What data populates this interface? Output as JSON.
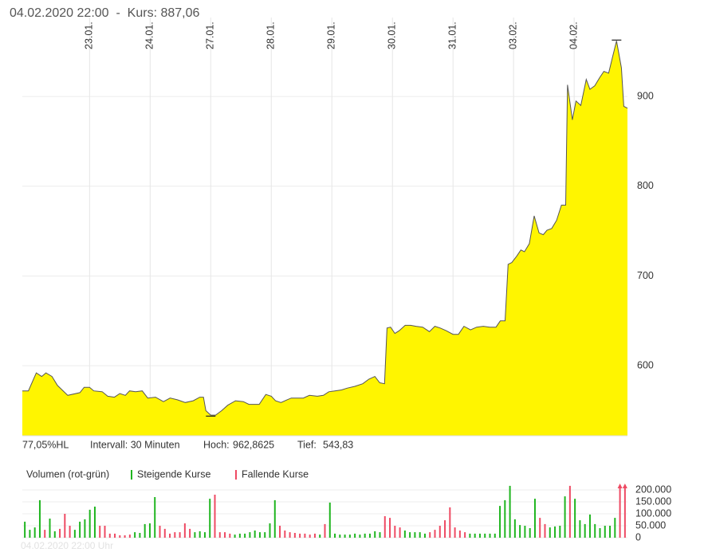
{
  "header": "04.02.2020 22:00  -  Kurs: 887,06",
  "info": {
    "hl": "77,05%HL",
    "interval": "Intervall: 30 Minuten",
    "high_label": "Hoch:",
    "high": {
      "value": 962.8625,
      "label": "962,8625"
    },
    "low_label": "Tief:",
    "low": {
      "value": 543.83,
      "label": "543,83"
    }
  },
  "footer": "04.02.2020 22:00 Uhr",
  "chart_data": [
    {
      "type": "area",
      "xlim": [
        -1.11,
        8.88
      ],
      "xticks": [
        {
          "value": 0,
          "label": "23.01."
        },
        {
          "value": 1,
          "label": "24.01."
        },
        {
          "value": 2,
          "label": "27.01."
        },
        {
          "value": 3,
          "label": "28.01."
        },
        {
          "value": 4,
          "label": "29.01."
        },
        {
          "value": 5,
          "label": "30.01."
        },
        {
          "value": 6,
          "label": "31.01."
        },
        {
          "value": 7,
          "label": "03.02."
        },
        {
          "value": 8,
          "label": "04.02."
        }
      ],
      "ylim": [
        522,
        988
      ],
      "yticks": [
        600,
        700,
        800,
        900
      ],
      "grid": true,
      "x": [
        -1.11,
        -1.01,
        -0.88,
        -0.79,
        -0.72,
        -0.62,
        -0.53,
        -0.36,
        -0.16,
        -0.09,
        0,
        0.07,
        0.21,
        0.3,
        0.41,
        0.5,
        0.59,
        0.66,
        0.76,
        0.87,
        0.96,
        1.09,
        1.22,
        1.33,
        1.45,
        1.58,
        1.71,
        1.82,
        1.88,
        1.92,
        2.0,
        2.08,
        2.18,
        2.28,
        2.41,
        2.54,
        2.63,
        2.8,
        2.91,
        3.0,
        3.07,
        3.16,
        3.26,
        3.33,
        3.42,
        3.53,
        3.63,
        3.76,
        3.86,
        3.95,
        4.05,
        4.16,
        4.25,
        4.38,
        4.51,
        4.61,
        4.71,
        4.79,
        4.87,
        4.91,
        4.97,
        5.04,
        5.11,
        5.21,
        5.3,
        5.39,
        5.5,
        5.61,
        5.7,
        5.79,
        5.89,
        6.0,
        6.09,
        6.18,
        6.29,
        6.39,
        6.5,
        6.61,
        6.71,
        6.78,
        6.86,
        6.91,
        6.97,
        7.05,
        7.12,
        7.18,
        7.26,
        7.34,
        7.42,
        7.49,
        7.55,
        7.63,
        7.71,
        7.79,
        7.86,
        7.89,
        7.97,
        8.03,
        8.11,
        8.2,
        8.26,
        8.34,
        8.42,
        8.49,
        8.57,
        8.63,
        8.7,
        8.78,
        8.82,
        8.88
      ],
      "series": [
        {
          "color": "#fff500",
          "line_color": "#555555",
          "values": [
            572,
            572,
            592,
            588,
            592,
            588,
            578,
            567,
            570,
            576,
            576,
            572,
            571,
            566,
            565,
            569,
            567,
            572,
            571,
            572,
            564,
            565,
            560,
            564,
            562,
            559,
            561,
            565,
            565,
            550,
            545,
            545,
            550,
            556,
            561,
            560,
            557,
            557,
            568,
            566,
            561,
            559,
            562,
            564,
            564,
            564,
            567,
            566,
            567,
            571,
            572,
            573,
            575,
            577,
            580,
            585,
            588,
            581,
            580,
            642,
            643,
            636,
            639,
            645,
            645,
            644,
            643,
            638,
            644,
            642,
            639,
            635,
            635,
            644,
            640,
            643,
            644,
            643,
            643,
            650,
            650,
            713,
            715,
            722,
            729,
            727,
            736,
            767,
            748,
            746,
            751,
            753,
            762,
            779,
            779,
            913,
            874,
            895,
            890,
            919,
            908,
            912,
            921,
            928,
            926,
            943,
            962,
            932,
            889,
            887
          ]
        }
      ]
    },
    {
      "type": "bar",
      "title": "Volumen (rot-grün)",
      "ylim": [
        0,
        220000
      ],
      "yticks": [
        0,
        {
          "value": 50000,
          "label": "50.000"
        },
        {
          "value": 100000,
          "label": "100.000"
        },
        {
          "value": 150000,
          "label": "150.000"
        },
        {
          "value": 200000,
          "label": "200.000"
        }
      ],
      "grid": true,
      "series": [
        {
          "name": "Steigende Kurse",
          "color": "#1fb51f",
          "values": [
            67000,
            33000,
            43000,
            157000,
            null,
            80000,
            27000,
            null,
            null,
            null,
            33000,
            67000,
            77000,
            117000,
            130000,
            null,
            null,
            null,
            null,
            null,
            null,
            null,
            23000,
            20000,
            57000,
            60000,
            170000,
            null,
            null,
            null,
            null,
            null,
            null,
            null,
            23000,
            27000,
            23000,
            163000,
            null,
            null,
            null,
            null,
            13000,
            17000,
            17000,
            23000,
            30000,
            23000,
            23000,
            60000,
            157000,
            null,
            null,
            null,
            null,
            null,
            null,
            null,
            null,
            13000,
            null,
            147000,
            17000,
            13000,
            13000,
            13000,
            17000,
            13000,
            17000,
            17000,
            27000,
            23000,
            null,
            null,
            null,
            null,
            30000,
            23000,
            23000,
            23000,
            17000,
            null,
            null,
            null,
            null,
            null,
            null,
            null,
            null,
            17000,
            17000,
            17000,
            17000,
            17000,
            17000,
            133000,
            157000,
            217000,
            77000,
            53000,
            50000,
            40000,
            163000,
            null,
            null,
            43000,
            47000,
            50000,
            173000,
            null,
            163000,
            73000,
            57000,
            97000,
            57000,
            40000,
            50000,
            50000,
            83000,
            null,
            null
          ]
        },
        {
          "name": "Fallende Kurse",
          "color": "#ee4a63",
          "values": [
            null,
            null,
            null,
            null,
            33000,
            null,
            null,
            37000,
            100000,
            50000,
            null,
            null,
            null,
            null,
            null,
            50000,
            50000,
            17000,
            17000,
            10000,
            10000,
            13000,
            null,
            null,
            null,
            null,
            null,
            50000,
            37000,
            17000,
            23000,
            23000,
            60000,
            37000,
            null,
            null,
            null,
            null,
            180000,
            23000,
            23000,
            17000,
            null,
            null,
            null,
            null,
            null,
            null,
            null,
            null,
            null,
            50000,
            30000,
            23000,
            20000,
            17000,
            17000,
            13000,
            17000,
            null,
            57000,
            null,
            null,
            null,
            null,
            null,
            null,
            null,
            null,
            null,
            null,
            null,
            90000,
            83000,
            50000,
            43000,
            null,
            null,
            null,
            null,
            null,
            23000,
            33000,
            50000,
            73000,
            127000,
            43000,
            30000,
            23000,
            null,
            null,
            null,
            null,
            null,
            null,
            null,
            null,
            null,
            null,
            null,
            null,
            null,
            null,
            83000,
            57000,
            null,
            null,
            null,
            null,
            217000,
            null,
            null,
            null,
            null,
            null,
            null,
            null,
            null,
            null,
            230000,
            230000
          ]
        }
      ]
    }
  ]
}
